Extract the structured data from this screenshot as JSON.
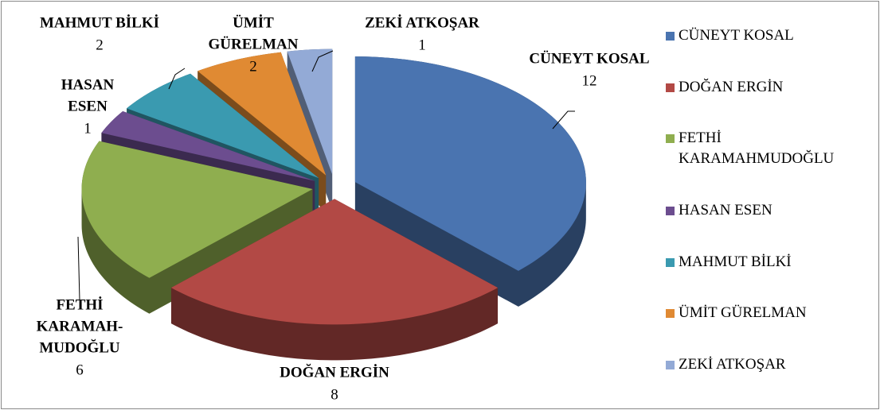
{
  "chart_data": {
    "type": "pie3d",
    "categories": [
      "CÜNEYT KOSAL",
      "DOĞAN ERGİN",
      "FETHİ KARAMAHMUDOĞLU",
      "HASAN ESEN",
      "MAHMUT BİLKİ",
      "ÜMİT GÜRELMAN",
      "ZEKİ ATKOŞAR"
    ],
    "category_labels": [
      [
        "CÜNEYT KOSAL"
      ],
      [
        "DOĞAN ERGİN"
      ],
      [
        "FETHİ",
        "KARAMAH-",
        "MUDOĞLU"
      ],
      [
        "HASAN",
        "ESEN"
      ],
      [
        "MAHMUT BİLKİ"
      ],
      [
        "ÜMİT",
        "GÜRELMAN"
      ],
      [
        "ZEKİ ATKOŞAR"
      ]
    ],
    "values": [
      12,
      8,
      6,
      1,
      2,
      2,
      1
    ],
    "colors": [
      "#4a74b0",
      "#b24945",
      "#8fae4f",
      "#6c4d8f",
      "#3a9ab0",
      "#e08a33",
      "#93aad6"
    ],
    "legend": "right"
  }
}
